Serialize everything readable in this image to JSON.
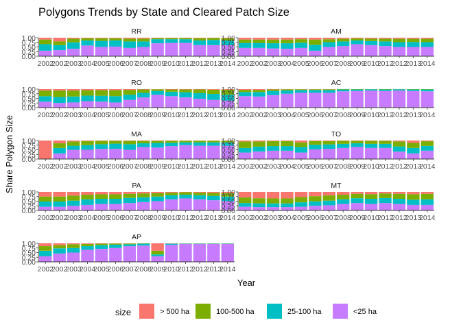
{
  "chart_data": {
    "type": "bar",
    "stacked": true,
    "title": "Polygons Trends by State and Cleared Patch Size",
    "xlabel": "Year",
    "ylabel": "Share Polygon Size",
    "ylim": [
      0,
      1
    ],
    "y_ticks": [
      "0.00",
      "0.25",
      "0.50",
      "0.75",
      "1.00"
    ],
    "x_tick_labels": [
      "2001",
      "2002",
      "2003",
      "2004",
      "2005",
      "2006",
      "2007",
      "2008",
      "2009",
      "2010",
      "2011",
      "2012",
      "2013",
      "2014"
    ],
    "x_tick_labels_display": [
      "2002",
      "2002",
      "2003",
      "2004",
      "2005",
      "2006",
      "2007",
      "2008",
      "2009",
      "2010",
      "2012",
      "2012",
      "2013",
      "2014"
    ],
    "legend": {
      "title": "size",
      "placement": "bottom",
      "entries": [
        {
          "key": "gt500",
          "label": "> 500 ha",
          "color": "#F8766D"
        },
        {
          "key": "s100_500",
          "label": "100-500 ha",
          "color": "#7CAE00"
        },
        {
          "key": "s25_100",
          "label": "25-100 ha",
          "color": "#00BFC4"
        },
        {
          "key": "lt25",
          "label": "<25 ha",
          "color": "#C77CFF"
        }
      ]
    },
    "stack_order_bottom_to_top": [
      "lt25",
      "s25_100",
      "s100_500",
      "gt500"
    ],
    "panels": [
      {
        "name": "RR",
        "lt25": [
          0.3,
          0.33,
          0.4,
          0.58,
          0.5,
          0.52,
          0.45,
          0.5,
          0.7,
          0.72,
          0.72,
          0.6,
          0.6,
          0.6
        ],
        "s25_100": [
          0.35,
          0.27,
          0.35,
          0.27,
          0.33,
          0.33,
          0.35,
          0.3,
          0.22,
          0.2,
          0.2,
          0.25,
          0.28,
          0.25
        ],
        "s100_500": [
          0.25,
          0.2,
          0.2,
          0.12,
          0.14,
          0.12,
          0.15,
          0.15,
          0.06,
          0.06,
          0.06,
          0.12,
          0.1,
          0.12
        ],
        "gt500": [
          0.1,
          0.2,
          0.05,
          0.03,
          0.03,
          0.03,
          0.05,
          0.05,
          0.02,
          0.02,
          0.02,
          0.03,
          0.02,
          0.03
        ]
      },
      {
        "name": "AM",
        "lt25": [
          0.45,
          0.45,
          0.42,
          0.4,
          0.45,
          0.3,
          0.5,
          0.55,
          0.65,
          0.6,
          0.55,
          0.5,
          0.5,
          0.5
        ],
        "s25_100": [
          0.27,
          0.27,
          0.28,
          0.3,
          0.28,
          0.32,
          0.26,
          0.25,
          0.2,
          0.22,
          0.25,
          0.26,
          0.27,
          0.26
        ],
        "s100_500": [
          0.18,
          0.18,
          0.2,
          0.2,
          0.19,
          0.28,
          0.16,
          0.14,
          0.11,
          0.13,
          0.15,
          0.18,
          0.17,
          0.18
        ],
        "gt500": [
          0.1,
          0.1,
          0.1,
          0.1,
          0.08,
          0.1,
          0.08,
          0.06,
          0.04,
          0.05,
          0.05,
          0.06,
          0.06,
          0.06
        ]
      },
      {
        "name": "RO",
        "lt25": [
          0.32,
          0.25,
          0.28,
          0.35,
          0.32,
          0.28,
          0.42,
          0.55,
          0.7,
          0.62,
          0.55,
          0.48,
          0.42,
          0.38
        ],
        "s25_100": [
          0.3,
          0.32,
          0.32,
          0.3,
          0.32,
          0.34,
          0.28,
          0.25,
          0.2,
          0.24,
          0.28,
          0.3,
          0.32,
          0.32
        ],
        "s100_500": [
          0.3,
          0.35,
          0.32,
          0.29,
          0.3,
          0.32,
          0.26,
          0.18,
          0.09,
          0.12,
          0.15,
          0.2,
          0.23,
          0.27
        ],
        "gt500": [
          0.08,
          0.08,
          0.08,
          0.06,
          0.06,
          0.06,
          0.04,
          0.02,
          0.01,
          0.02,
          0.02,
          0.02,
          0.03,
          0.03
        ]
      },
      {
        "name": "AC",
        "lt25": [
          0.62,
          0.6,
          0.68,
          0.75,
          0.8,
          0.8,
          0.8,
          0.88,
          0.9,
          0.92,
          0.9,
          0.92,
          0.9,
          0.88
        ],
        "s25_100": [
          0.22,
          0.24,
          0.22,
          0.18,
          0.15,
          0.15,
          0.15,
          0.1,
          0.08,
          0.07,
          0.08,
          0.07,
          0.08,
          0.1
        ],
        "s100_500": [
          0.12,
          0.12,
          0.08,
          0.06,
          0.04,
          0.04,
          0.04,
          0.02,
          0.02,
          0.01,
          0.02,
          0.01,
          0.02,
          0.02
        ],
        "gt500": [
          0.04,
          0.04,
          0.02,
          0.01,
          0.01,
          0.01,
          0.01,
          0.0,
          0.0,
          0.0,
          0.0,
          0.0,
          0.0,
          0.0
        ]
      },
      {
        "name": "MA",
        "lt25": [
          0.0,
          0.3,
          0.5,
          0.5,
          0.55,
          0.55,
          0.5,
          0.65,
          0.62,
          0.7,
          0.75,
          0.72,
          0.72,
          0.72
        ],
        "s25_100": [
          0.0,
          0.3,
          0.22,
          0.25,
          0.25,
          0.28,
          0.3,
          0.2,
          0.25,
          0.18,
          0.15,
          0.18,
          0.18,
          0.18
        ],
        "s100_500": [
          0.0,
          0.25,
          0.23,
          0.22,
          0.18,
          0.15,
          0.18,
          0.13,
          0.11,
          0.1,
          0.09,
          0.09,
          0.09,
          0.09
        ],
        "gt500": [
          1.0,
          0.15,
          0.05,
          0.03,
          0.02,
          0.02,
          0.02,
          0.02,
          0.02,
          0.02,
          0.01,
          0.01,
          0.01,
          0.01
        ]
      },
      {
        "name": "TO",
        "lt25": [
          0.35,
          0.4,
          0.45,
          0.45,
          0.35,
          0.52,
          0.55,
          0.6,
          0.65,
          0.6,
          0.6,
          0.4,
          0.3,
          0.45
        ],
        "s25_100": [
          0.25,
          0.27,
          0.25,
          0.25,
          0.3,
          0.25,
          0.24,
          0.22,
          0.2,
          0.22,
          0.22,
          0.28,
          0.3,
          0.26
        ],
        "s100_500": [
          0.35,
          0.28,
          0.27,
          0.27,
          0.25,
          0.2,
          0.18,
          0.16,
          0.13,
          0.16,
          0.16,
          0.27,
          0.27,
          0.25
        ],
        "gt500": [
          0.05,
          0.05,
          0.03,
          0.03,
          0.1,
          0.03,
          0.03,
          0.02,
          0.02,
          0.02,
          0.02,
          0.05,
          0.13,
          0.04
        ]
      },
      {
        "name": "PA",
        "lt25": [
          0.2,
          0.2,
          0.25,
          0.3,
          0.35,
          0.35,
          0.4,
          0.45,
          0.5,
          0.6,
          0.65,
          0.6,
          0.55,
          0.5
        ],
        "s25_100": [
          0.28,
          0.28,
          0.28,
          0.3,
          0.28,
          0.28,
          0.28,
          0.26,
          0.25,
          0.22,
          0.2,
          0.22,
          0.24,
          0.25
        ],
        "s100_500": [
          0.27,
          0.27,
          0.27,
          0.25,
          0.24,
          0.24,
          0.22,
          0.21,
          0.18,
          0.14,
          0.13,
          0.14,
          0.16,
          0.18
        ],
        "gt500": [
          0.25,
          0.25,
          0.2,
          0.15,
          0.13,
          0.13,
          0.1,
          0.08,
          0.07,
          0.04,
          0.02,
          0.04,
          0.05,
          0.07
        ]
      },
      {
        "name": "MT",
        "lt25": [
          0.2,
          0.18,
          0.18,
          0.18,
          0.2,
          0.25,
          0.28,
          0.35,
          0.4,
          0.35,
          0.4,
          0.35,
          0.3,
          0.3
        ],
        "s25_100": [
          0.2,
          0.2,
          0.2,
          0.2,
          0.24,
          0.24,
          0.25,
          0.25,
          0.26,
          0.28,
          0.27,
          0.28,
          0.28,
          0.3
        ],
        "s100_500": [
          0.3,
          0.28,
          0.27,
          0.27,
          0.28,
          0.28,
          0.28,
          0.25,
          0.24,
          0.25,
          0.25,
          0.27,
          0.3,
          0.3
        ],
        "gt500": [
          0.3,
          0.34,
          0.35,
          0.35,
          0.28,
          0.23,
          0.19,
          0.15,
          0.1,
          0.12,
          0.08,
          0.1,
          0.12,
          0.1
        ]
      },
      {
        "name": "AP",
        "lt25": [
          0.3,
          0.45,
          0.5,
          0.65,
          0.7,
          0.75,
          0.85,
          0.88,
          0.3,
          0.92,
          0.97,
          0.97,
          0.97,
          0.97
        ],
        "s25_100": [
          0.3,
          0.28,
          0.25,
          0.2,
          0.2,
          0.18,
          0.1,
          0.1,
          0.1,
          0.06,
          0.02,
          0.02,
          0.02,
          0.02
        ],
        "s100_500": [
          0.25,
          0.17,
          0.2,
          0.12,
          0.08,
          0.06,
          0.04,
          0.02,
          0.2,
          0.01,
          0.01,
          0.01,
          0.01,
          0.01
        ],
        "gt500": [
          0.15,
          0.1,
          0.05,
          0.03,
          0.02,
          0.01,
          0.01,
          0.0,
          0.4,
          0.01,
          0.0,
          0.0,
          0.0,
          0.0
        ]
      }
    ]
  }
}
